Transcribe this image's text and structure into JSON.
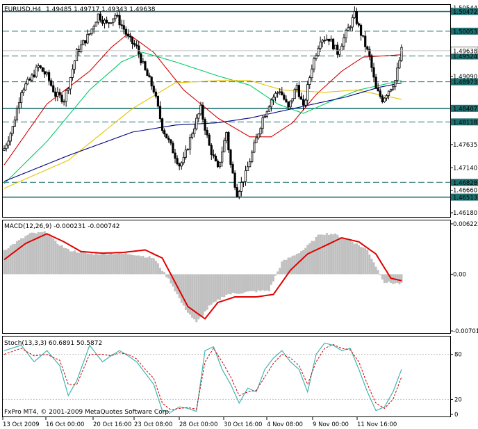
{
  "window": {
    "symbol_header": "EURUSD,H4",
    "ohlc": "1.49485 1.49717 1.49343 1.49638",
    "copyright": "FxPro MT4, © 2001-2009 MetaQuotes Software Corp."
  },
  "colors": {
    "background": "#ffffff",
    "frame": "#000000",
    "bull_candle": "#ffffff",
    "bear_candle": "#000000",
    "level_line": "#1e6f6f",
    "ma_red": "#d40000",
    "ma_green": "#00cc66",
    "ma_yellow": "#e6c200",
    "ma_navy": "#000080",
    "macd_hist": "#c0c0c0",
    "macd_signal": "#e00000",
    "stoch_main": "#40b4b4",
    "stoch_signal": "#cc0000"
  },
  "chart_data": [
    {
      "type": "candlestick",
      "pane": "price",
      "symbol": "EURUSD",
      "timeframe": "H4",
      "ylim": [
        1.4618,
        1.5054
      ],
      "y_ticks": [
        "1.50544",
        "1.50053",
        "1.49638",
        "1.49090",
        "1.48407",
        "1.47635",
        "1.47140",
        "1.46660",
        "1.46180"
      ],
      "levels": [
        {
          "value": 1.50472,
          "label": "1.50472",
          "style": "solid"
        },
        {
          "value": 1.50053,
          "label": "1.50053",
          "style": "dash"
        },
        {
          "value": 1.49524,
          "label": "1.49524",
          "style": "dash"
        },
        {
          "value": 1.48973,
          "label": "1.48973",
          "style": "dash"
        },
        {
          "value": 1.48407,
          "label": "1.48407",
          "style": "solid"
        },
        {
          "value": 1.48118,
          "label": "1.48118",
          "style": "dash"
        },
        {
          "value": 1.46828,
          "label": "1.46828",
          "style": "dash"
        },
        {
          "value": 1.46513,
          "label": "1.46513",
          "style": "solid"
        }
      ],
      "last_price": {
        "value": 1.49638,
        "label": "1.49638"
      },
      "close_path": [
        [
          0,
          1.4755
        ],
        [
          4,
          1.48
        ],
        [
          8,
          1.488
        ],
        [
          12,
          1.49
        ],
        [
          16,
          1.493
        ],
        [
          20,
          1.491
        ],
        [
          24,
          1.487
        ],
        [
          28,
          1.486
        ],
        [
          30,
          1.489
        ],
        [
          34,
          1.496
        ],
        [
          40,
          1.5
        ],
        [
          44,
          1.504
        ],
        [
          48,
          1.502
        ],
        [
          52,
          1.504
        ],
        [
          56,
          1.501
        ],
        [
          58,
          1.499
        ],
        [
          62,
          1.497
        ],
        [
          66,
          1.492
        ],
        [
          70,
          1.488
        ],
        [
          74,
          1.48
        ],
        [
          78,
          1.476
        ],
        [
          82,
          1.472
        ],
        [
          84,
          1.473
        ],
        [
          88,
          1.479
        ],
        [
          92,
          1.484
        ],
        [
          96,
          1.476
        ],
        [
          100,
          1.471
        ],
        [
          104,
          1.479
        ],
        [
          106,
          1.472
        ],
        [
          109,
          1.466
        ],
        [
          113,
          1.47
        ],
        [
          117,
          1.476
        ],
        [
          121,
          1.482
        ],
        [
          125,
          1.486
        ],
        [
          129,
          1.488
        ],
        [
          133,
          1.484
        ],
        [
          137,
          1.489
        ],
        [
          140,
          1.484
        ],
        [
          144,
          1.493
        ],
        [
          148,
          1.499
        ],
        [
          152,
          1.499
        ],
        [
          156,
          1.496
        ],
        [
          160,
          1.5
        ],
        [
          164,
          1.504
        ],
        [
          167,
          1.5
        ],
        [
          171,
          1.495
        ],
        [
          174,
          1.488
        ],
        [
          177,
          1.486
        ],
        [
          180,
          1.488
        ],
        [
          183,
          1.49
        ],
        [
          186,
          1.4964
        ]
      ],
      "indicators": [
        {
          "name": "MA fast",
          "color_key": "ma_red",
          "path": [
            [
              0,
              1.472
            ],
            [
              20,
              1.485
            ],
            [
              40,
              1.492
            ],
            [
              50,
              1.497
            ],
            [
              58,
              1.5
            ],
            [
              70,
              1.496
            ],
            [
              84,
              1.488
            ],
            [
              100,
              1.482
            ],
            [
              115,
              1.478
            ],
            [
              125,
              1.478
            ],
            [
              135,
              1.481
            ],
            [
              146,
              1.487
            ],
            [
              158,
              1.492
            ],
            [
              168,
              1.495
            ],
            [
              186,
              1.4955
            ]
          ]
        },
        {
          "name": "MA mid",
          "color_key": "ma_green",
          "path": [
            [
              0,
              1.468
            ],
            [
              20,
              1.477
            ],
            [
              40,
              1.488
            ],
            [
              55,
              1.494
            ],
            [
              65,
              1.496
            ],
            [
              80,
              1.494
            ],
            [
              100,
              1.491
            ],
            [
              115,
              1.489
            ],
            [
              128,
              1.485
            ],
            [
              140,
              1.483
            ],
            [
              155,
              1.486
            ],
            [
              166,
              1.488
            ],
            [
              186,
              1.49
            ]
          ]
        },
        {
          "name": "MA slow",
          "color_key": "ma_yellow",
          "path": [
            [
              0,
              1.467
            ],
            [
              30,
              1.473
            ],
            [
              60,
              1.484
            ],
            [
              80,
              1.4895
            ],
            [
              100,
              1.49
            ],
            [
              115,
              1.49
            ],
            [
              130,
              1.488
            ],
            [
              150,
              1.4875
            ],
            [
              165,
              1.488
            ],
            [
              186,
              1.486
            ]
          ]
        },
        {
          "name": "MA long",
          "color_key": "ma_navy",
          "path": [
            [
              0,
              1.4685
            ],
            [
              30,
              1.474
            ],
            [
              60,
              1.479
            ],
            [
              80,
              1.4805
            ],
            [
              100,
              1.481
            ],
            [
              115,
              1.482
            ],
            [
              130,
              1.4835
            ],
            [
              145,
              1.485
            ],
            [
              160,
              1.4865
            ],
            [
              175,
              1.4885
            ],
            [
              186,
              1.4895
            ]
          ]
        }
      ]
    },
    {
      "type": "bar",
      "pane": "macd",
      "label": "MACD(12,26,9) -0.000231 -0.000742",
      "ylim": [
        -0.00701,
        0.00622
      ],
      "y_ticks": [
        "0.006222",
        "0.00",
        "-0.00701"
      ],
      "histogram_path": [
        [
          0,
          0.003
        ],
        [
          12,
          0.005
        ],
        [
          20,
          0.0052
        ],
        [
          24,
          0.004
        ],
        [
          30,
          0.003
        ],
        [
          40,
          0.0025
        ],
        [
          50,
          0.0026
        ],
        [
          60,
          0.0025
        ],
        [
          70,
          0.002
        ],
        [
          78,
          -0.001
        ],
        [
          84,
          -0.004
        ],
        [
          90,
          -0.006
        ],
        [
          96,
          -0.004
        ],
        [
          104,
          -0.0025
        ],
        [
          114,
          -0.0022
        ],
        [
          124,
          -0.002
        ],
        [
          130,
          0.0015
        ],
        [
          140,
          0.003
        ],
        [
          148,
          0.005
        ],
        [
          154,
          0.005
        ],
        [
          162,
          0.0042
        ],
        [
          170,
          0.003
        ],
        [
          178,
          -0.001
        ],
        [
          186,
          -0.0012
        ]
      ],
      "signal_path": [
        [
          0,
          0.0018
        ],
        [
          10,
          0.0038
        ],
        [
          20,
          0.005
        ],
        [
          28,
          0.004
        ],
        [
          36,
          0.0028
        ],
        [
          46,
          0.0026
        ],
        [
          56,
          0.0027
        ],
        [
          66,
          0.003
        ],
        [
          74,
          0.002
        ],
        [
          80,
          -0.001
        ],
        [
          86,
          -0.004
        ],
        [
          94,
          -0.0055
        ],
        [
          100,
          -0.0035
        ],
        [
          108,
          -0.0028
        ],
        [
          118,
          -0.0028
        ],
        [
          126,
          -0.0025
        ],
        [
          134,
          0.0005
        ],
        [
          142,
          0.0025
        ],
        [
          150,
          0.0035
        ],
        [
          158,
          0.0045
        ],
        [
          166,
          0.004
        ],
        [
          174,
          0.0025
        ],
        [
          181,
          -0.0005
        ],
        [
          186,
          -0.0008
        ]
      ]
    },
    {
      "type": "line",
      "pane": "stochastic",
      "label": "Stoch(13,3,3) 60.6891 50.5872",
      "ylim": [
        0,
        100
      ],
      "y_ticks": [
        "80",
        "20",
        "0"
      ],
      "main_path": [
        [
          0,
          85
        ],
        [
          8,
          92
        ],
        [
          14,
          70
        ],
        [
          20,
          85
        ],
        [
          26,
          65
        ],
        [
          30,
          25
        ],
        [
          34,
          45
        ],
        [
          40,
          92
        ],
        [
          46,
          70
        ],
        [
          50,
          78
        ],
        [
          54,
          85
        ],
        [
          58,
          78
        ],
        [
          62,
          70
        ],
        [
          66,
          55
        ],
        [
          70,
          40
        ],
        [
          74,
          5
        ],
        [
          78,
          3
        ],
        [
          82,
          10
        ],
        [
          86,
          8
        ],
        [
          90,
          4
        ],
        [
          94,
          85
        ],
        [
          98,
          90
        ],
        [
          102,
          60
        ],
        [
          106,
          40
        ],
        [
          110,
          15
        ],
        [
          114,
          35
        ],
        [
          118,
          30
        ],
        [
          122,
          60
        ],
        [
          126,
          75
        ],
        [
          130,
          85
        ],
        [
          134,
          70
        ],
        [
          138,
          60
        ],
        [
          142,
          30
        ],
        [
          146,
          80
        ],
        [
          150,
          95
        ],
        [
          154,
          92
        ],
        [
          158,
          85
        ],
        [
          162,
          88
        ],
        [
          166,
          60
        ],
        [
          170,
          30
        ],
        [
          174,
          5
        ],
        [
          178,
          10
        ],
        [
          182,
          30
        ],
        [
          186,
          60
        ]
      ],
      "signal_path": [
        [
          0,
          80
        ],
        [
          8,
          88
        ],
        [
          14,
          78
        ],
        [
          20,
          80
        ],
        [
          26,
          72
        ],
        [
          30,
          40
        ],
        [
          34,
          40
        ],
        [
          40,
          80
        ],
        [
          46,
          80
        ],
        [
          50,
          78
        ],
        [
          54,
          82
        ],
        [
          58,
          80
        ],
        [
          62,
          74
        ],
        [
          66,
          60
        ],
        [
          70,
          48
        ],
        [
          74,
          15
        ],
        [
          78,
          6
        ],
        [
          82,
          8
        ],
        [
          86,
          9
        ],
        [
          90,
          7
        ],
        [
          94,
          70
        ],
        [
          98,
          88
        ],
        [
          102,
          70
        ],
        [
          106,
          50
        ],
        [
          110,
          25
        ],
        [
          114,
          30
        ],
        [
          118,
          32
        ],
        [
          122,
          50
        ],
        [
          126,
          68
        ],
        [
          130,
          80
        ],
        [
          134,
          75
        ],
        [
          138,
          65
        ],
        [
          142,
          40
        ],
        [
          146,
          70
        ],
        [
          150,
          88
        ],
        [
          154,
          93
        ],
        [
          158,
          88
        ],
        [
          162,
          86
        ],
        [
          166,
          70
        ],
        [
          170,
          40
        ],
        [
          174,
          15
        ],
        [
          178,
          8
        ],
        [
          182,
          20
        ],
        [
          186,
          50
        ]
      ]
    }
  ],
  "x_axis": {
    "labels": [
      "13 Oct 2009",
      "16 Oct 00:00",
      "20 Oct 16:00",
      "23 Oct 08:00",
      "28 Oct 00:00",
      "30 Oct 16:00",
      "4 Nov 08:00",
      "9 Nov 00:00",
      "11 Nov 16:00"
    ]
  }
}
